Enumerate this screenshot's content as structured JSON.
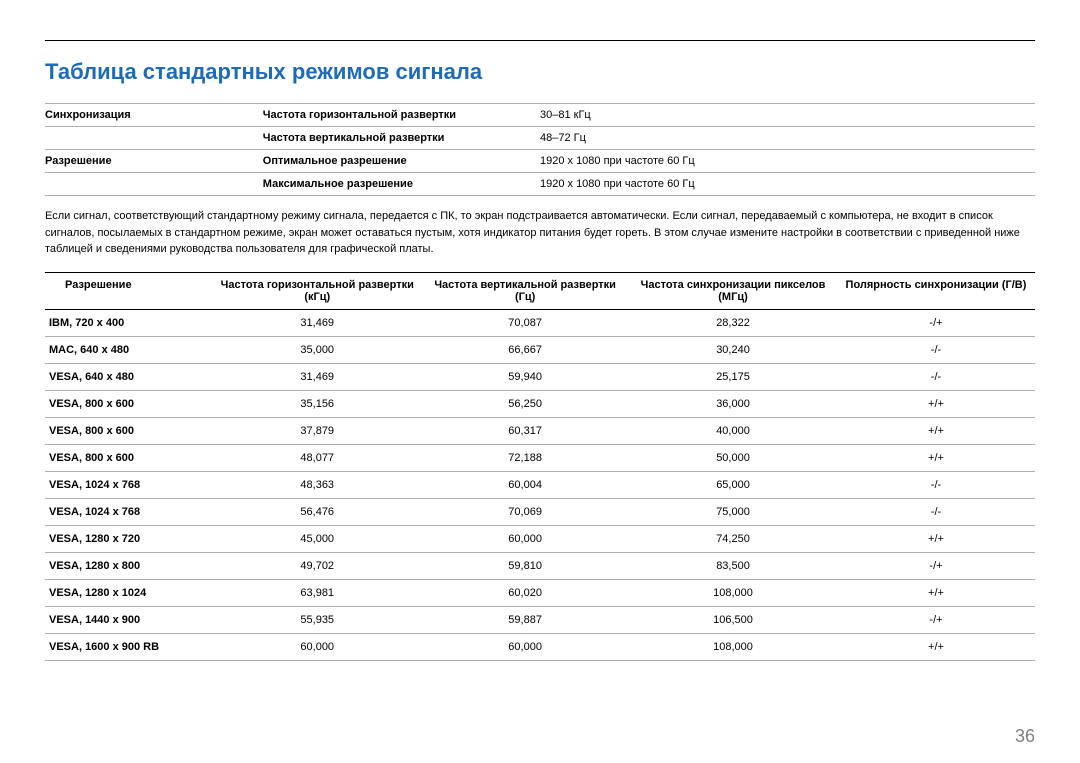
{
  "title": "Таблица стандартных режимов сигнала",
  "title_color": "#1e6bb8",
  "spec": {
    "rows": [
      {
        "group": "Синхронизация",
        "label": "Частота горизонтальной развертки",
        "value": "30–81 кГц"
      },
      {
        "group": "",
        "label": "Частота вертикальной развертки",
        "value": "48–72 Гц"
      },
      {
        "group": "Разрешение",
        "label": "Оптимальное разрешение",
        "value": "1920 x 1080 при частоте 60 Гц"
      },
      {
        "group": "",
        "label": "Максимальное разрешение",
        "value": "1920 x 1080 при частоте 60 Гц"
      }
    ]
  },
  "description": "Если сигнал, соответствующий стандартному режиму сигнала, передается с ПК, то экран подстраивается автоматически. Если сигнал, передаваемый с компьютера, не входит в список сигналов, посылаемых в стандартном режиме, экран может оставаться пустым, хотя индикатор питания будет гореть. В этом случае измените настройки в соответствии с приведенной ниже таблицей и сведениями руководства пользователя для графической платы.",
  "modes": {
    "headers": [
      "Разрешение",
      "Частота горизонтальной развертки (кГц)",
      "Частота вертикальной развертки (Гц)",
      "Частота синхронизации пикселов (МГц)",
      "Полярность синхронизации (Г/В)"
    ],
    "rows": [
      [
        "IBM, 720 x 400",
        "31,469",
        "70,087",
        "28,322",
        "-/+"
      ],
      [
        "MAC, 640 x 480",
        "35,000",
        "66,667",
        "30,240",
        "-/-"
      ],
      [
        "VESA, 640 x 480",
        "31,469",
        "59,940",
        "25,175",
        "-/-"
      ],
      [
        "VESA, 800 x 600",
        "35,156",
        "56,250",
        "36,000",
        "+/+"
      ],
      [
        "VESA, 800 x 600",
        "37,879",
        "60,317",
        "40,000",
        "+/+"
      ],
      [
        "VESA, 800 x 600",
        "48,077",
        "72,188",
        "50,000",
        "+/+"
      ],
      [
        "VESA, 1024 x 768",
        "48,363",
        "60,004",
        "65,000",
        "-/-"
      ],
      [
        "VESA, 1024 x 768",
        "56,476",
        "70,069",
        "75,000",
        "-/-"
      ],
      [
        "VESA, 1280 x 720",
        "45,000",
        "60,000",
        "74,250",
        "+/+"
      ],
      [
        "VESA, 1280 x 800",
        "49,702",
        "59,810",
        "83,500",
        "-/+"
      ],
      [
        "VESA, 1280 x 1024",
        "63,981",
        "60,020",
        "108,000",
        "+/+"
      ],
      [
        "VESA, 1440 x 900",
        "55,935",
        "59,887",
        "106,500",
        "-/+"
      ],
      [
        "VESA, 1600 x 900 RB",
        "60,000",
        "60,000",
        "108,000",
        "+/+"
      ]
    ]
  },
  "page_number": "36"
}
